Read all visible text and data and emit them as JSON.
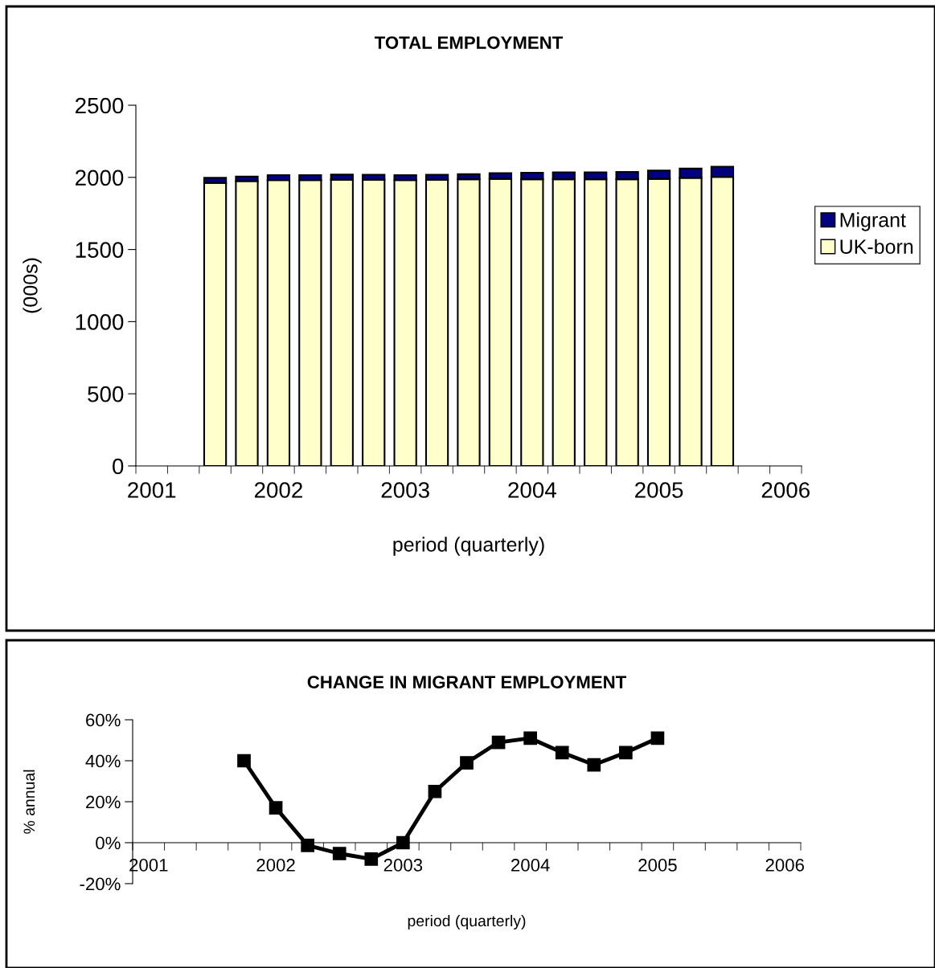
{
  "chart_data": [
    {
      "type": "bar",
      "title": "TOTAL EMPLOYMENT",
      "xlabel": "period (quarterly)",
      "ylabel": "(000s)",
      "stacked": true,
      "legend": "right",
      "categories": [
        "2001",
        null,
        null,
        null,
        "2002",
        null,
        null,
        null,
        "2003",
        null,
        null,
        null,
        "2004",
        null,
        null,
        null,
        "2005",
        null,
        null,
        null,
        "2006"
      ],
      "series": [
        {
          "name": "UK-born",
          "color": "#ffffcc",
          "values": [
            null,
            null,
            1962,
            1974,
            1981,
            1981,
            1984,
            1984,
            1981,
            1984,
            1987,
            1990,
            1987,
            1987,
            1987,
            1987,
            1990,
            1997,
            2003,
            null,
            null
          ]
        },
        {
          "name": "Migrant",
          "color": "#000080",
          "values": [
            null,
            null,
            35,
            32,
            35,
            35,
            35,
            34,
            34,
            34,
            35,
            39,
            45,
            48,
            48,
            51,
            58,
            64,
            71,
            null,
            null
          ]
        }
      ],
      "ylim": [
        0,
        2500
      ],
      "yticks": [
        0,
        500,
        1000,
        1500,
        2000,
        2500
      ]
    },
    {
      "type": "line",
      "title": "CHANGE IN MIGRANT EMPLOYMENT",
      "xlabel": "period (quarterly)",
      "ylabel": "% annual",
      "marker": "square",
      "line_style": "solid",
      "categories": [
        "2001",
        null,
        null,
        null,
        "2002",
        null,
        null,
        null,
        "2003",
        null,
        null,
        null,
        "2004",
        null,
        null,
        null,
        "2005",
        null,
        null,
        null,
        "2006"
      ],
      "series": [
        {
          "color": "#000000",
          "values": [
            null,
            null,
            null,
            40,
            17,
            -1.3,
            -5.3,
            -8,
            0,
            25,
            39,
            49,
            51,
            44,
            38,
            44,
            51,
            null,
            null,
            null,
            null
          ]
        }
      ],
      "ylim": [
        -20,
        60
      ],
      "yticks": [
        {
          "value": -20,
          "label": "-20%"
        },
        {
          "value": 0,
          "label": "0%"
        },
        {
          "value": 20,
          "label": "20%"
        },
        {
          "value": 40,
          "label": "40%"
        },
        {
          "value": 60,
          "label": "60%"
        }
      ]
    }
  ]
}
